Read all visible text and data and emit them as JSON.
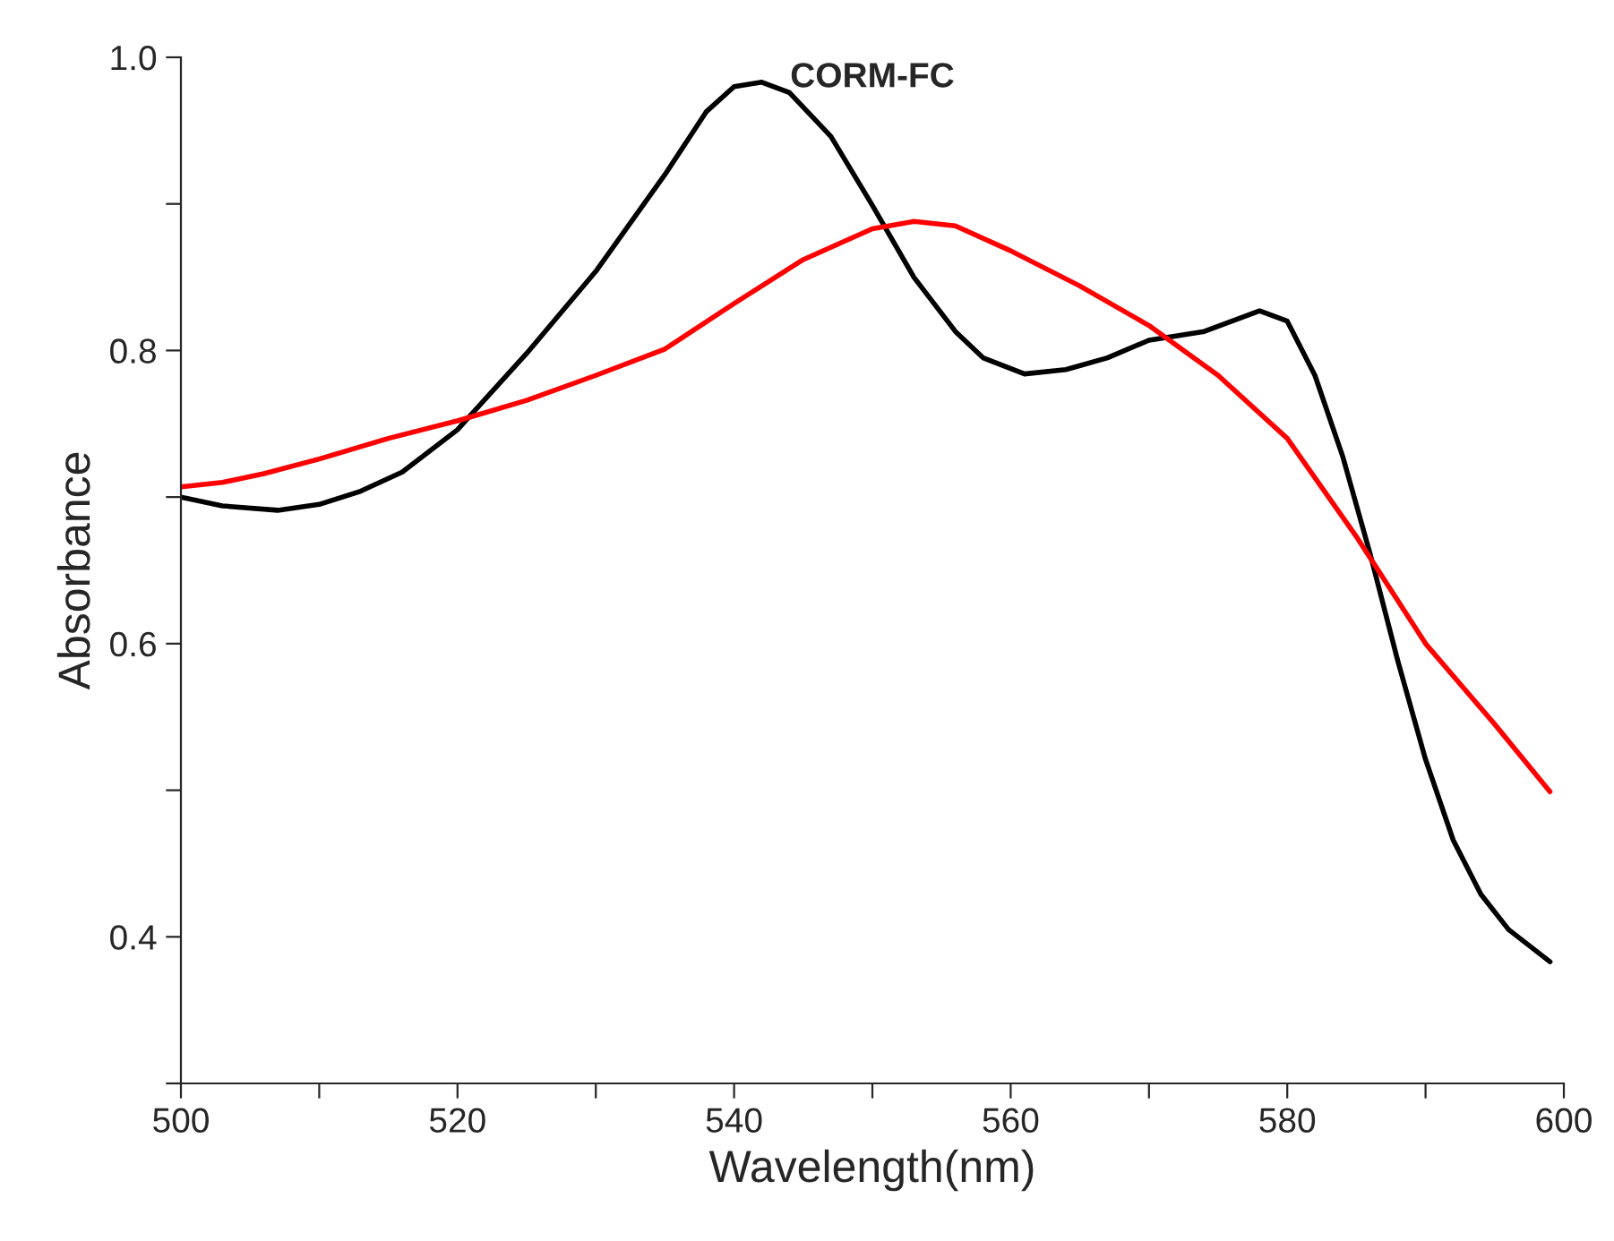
{
  "chart_data": {
    "type": "line",
    "title": "CORM-FC",
    "xlabel": "Wavelength(nm)",
    "ylabel": "Absorbance",
    "xlim": [
      500,
      600
    ],
    "ylim": [
      0.3,
      1.0
    ],
    "xticks": [
      500,
      {
        "value": 510,
        "label": null
      },
      520,
      {
        "value": 530,
        "label": null
      },
      540,
      {
        "value": 550,
        "label": null
      },
      560,
      {
        "value": 570,
        "label": null
      },
      580,
      {
        "value": 590,
        "label": null
      },
      600
    ],
    "yticks": [
      {
        "value": 0.3,
        "label": null
      },
      0.4,
      {
        "value": 0.5,
        "label": null
      },
      0.6,
      {
        "value": 0.7,
        "label": null
      },
      0.8,
      {
        "value": 0.9,
        "label": null
      },
      {
        "value": 1,
        "label": "1.0"
      }
    ],
    "grid": false,
    "legend": false,
    "marker": "none",
    "line_style": "solid",
    "series": [
      {
        "color": "#000000",
        "x": [
          500,
          503,
          507,
          510,
          513,
          516,
          520,
          525,
          530,
          535,
          538,
          540,
          542,
          544,
          547,
          550,
          553,
          556,
          558,
          561,
          564,
          567,
          570,
          574,
          576,
          578,
          580,
          582,
          584,
          586,
          588,
          590,
          592,
          594,
          596,
          599
        ],
        "values": [
          0.7,
          0.694,
          0.691,
          0.695,
          0.704,
          0.717,
          0.746,
          0.798,
          0.854,
          0.92,
          0.963,
          0.98,
          0.983,
          0.976,
          0.946,
          0.899,
          0.85,
          0.813,
          0.795,
          0.784,
          0.787,
          0.795,
          0.807,
          0.813,
          0.82,
          0.827,
          0.82,
          0.783,
          0.728,
          0.661,
          0.588,
          0.521,
          0.466,
          0.429,
          0.405,
          0.383
        ]
      },
      {
        "color": "#ff0000",
        "x": [
          500,
          503,
          506,
          510,
          515,
          520,
          525,
          530,
          535,
          540,
          545,
          550,
          553,
          556,
          560,
          565,
          570,
          575,
          580,
          585,
          590,
          595,
          599
        ],
        "values": [
          0.707,
          0.71,
          0.716,
          0.726,
          0.74,
          0.752,
          0.766,
          0.783,
          0.801,
          0.832,
          0.862,
          0.883,
          0.888,
          0.885,
          0.868,
          0.844,
          0.817,
          0.783,
          0.74,
          0.673,
          0.6,
          0.545,
          0.499
        ]
      }
    ]
  }
}
